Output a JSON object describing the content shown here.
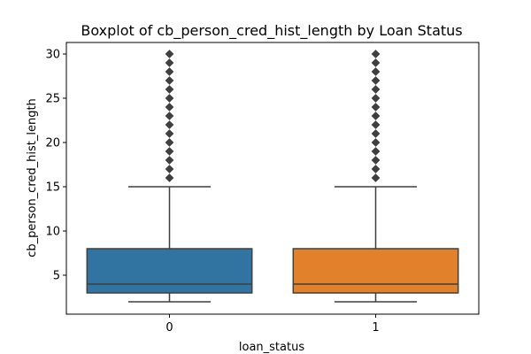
{
  "chart_data": {
    "type": "box",
    "title": "Boxplot of cb_person_cred_hist_length by Loan Status",
    "xlabel": "loan_status",
    "ylabel": "cb_person_cred_hist_length",
    "categories": [
      "0",
      "1"
    ],
    "ylim": [
      0.6,
      31.3
    ],
    "yticks": [
      5,
      10,
      15,
      20,
      25,
      30
    ],
    "grid": false,
    "legend": "none",
    "boxes": [
      {
        "category": "0",
        "color": "#3274a1",
        "whisker_low": 2,
        "q1": 3,
        "median": 4,
        "q3": 8,
        "whisker_high": 15,
        "outliers": [
          16,
          17,
          18,
          19,
          20,
          21,
          22,
          23,
          24,
          25,
          26,
          27,
          28,
          29,
          30
        ]
      },
      {
        "category": "1",
        "color": "#e1812c",
        "whisker_low": 2,
        "q1": 3,
        "median": 4,
        "q3": 8,
        "whisker_high": 15,
        "outliers": [
          16,
          17,
          18,
          19,
          20,
          21,
          22,
          23,
          24,
          25,
          26,
          27,
          28,
          29,
          30
        ]
      }
    ]
  }
}
